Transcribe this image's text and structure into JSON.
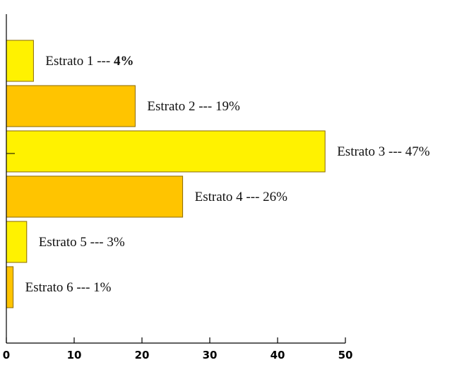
{
  "chart_data": {
    "type": "bar",
    "orientation": "horizontal",
    "categories": [
      "Estrato 1",
      "Estrato 2",
      "Estrato 3",
      "Estrato 4",
      "Estrato 5",
      "Estrato 6"
    ],
    "values": [
      4,
      19,
      47,
      26,
      3,
      1
    ],
    "labels": [
      {
        "text": "Estrato 1 --- ",
        "pct": "4%",
        "pct_bold": true
      },
      {
        "text": "Estrato 2 --- ",
        "pct": "19%",
        "pct_bold": false
      },
      {
        "text": "Estrato 3 --- ",
        "pct": "47%",
        "pct_bold": false
      },
      {
        "text": "Estrato 4 --- ",
        "pct": "26%",
        "pct_bold": false
      },
      {
        "text": "Estrato 5 --- ",
        "pct": "3%",
        "pct_bold": false
      },
      {
        "text": "Estrato 6 --- ",
        "pct": "1%",
        "pct_bold": false
      }
    ],
    "xlim": [
      0,
      50
    ],
    "x_ticks": [
      0,
      10,
      20,
      30,
      40,
      50
    ],
    "title": "",
    "xlabel": "",
    "ylabel": "",
    "grid": false,
    "legend": "none",
    "colors": [
      "#FFF200",
      "#FFC400",
      "#FFF200",
      "#FFC400",
      "#FFF200",
      "#FFC400"
    ],
    "stroke_color": "#8A6A00"
  }
}
